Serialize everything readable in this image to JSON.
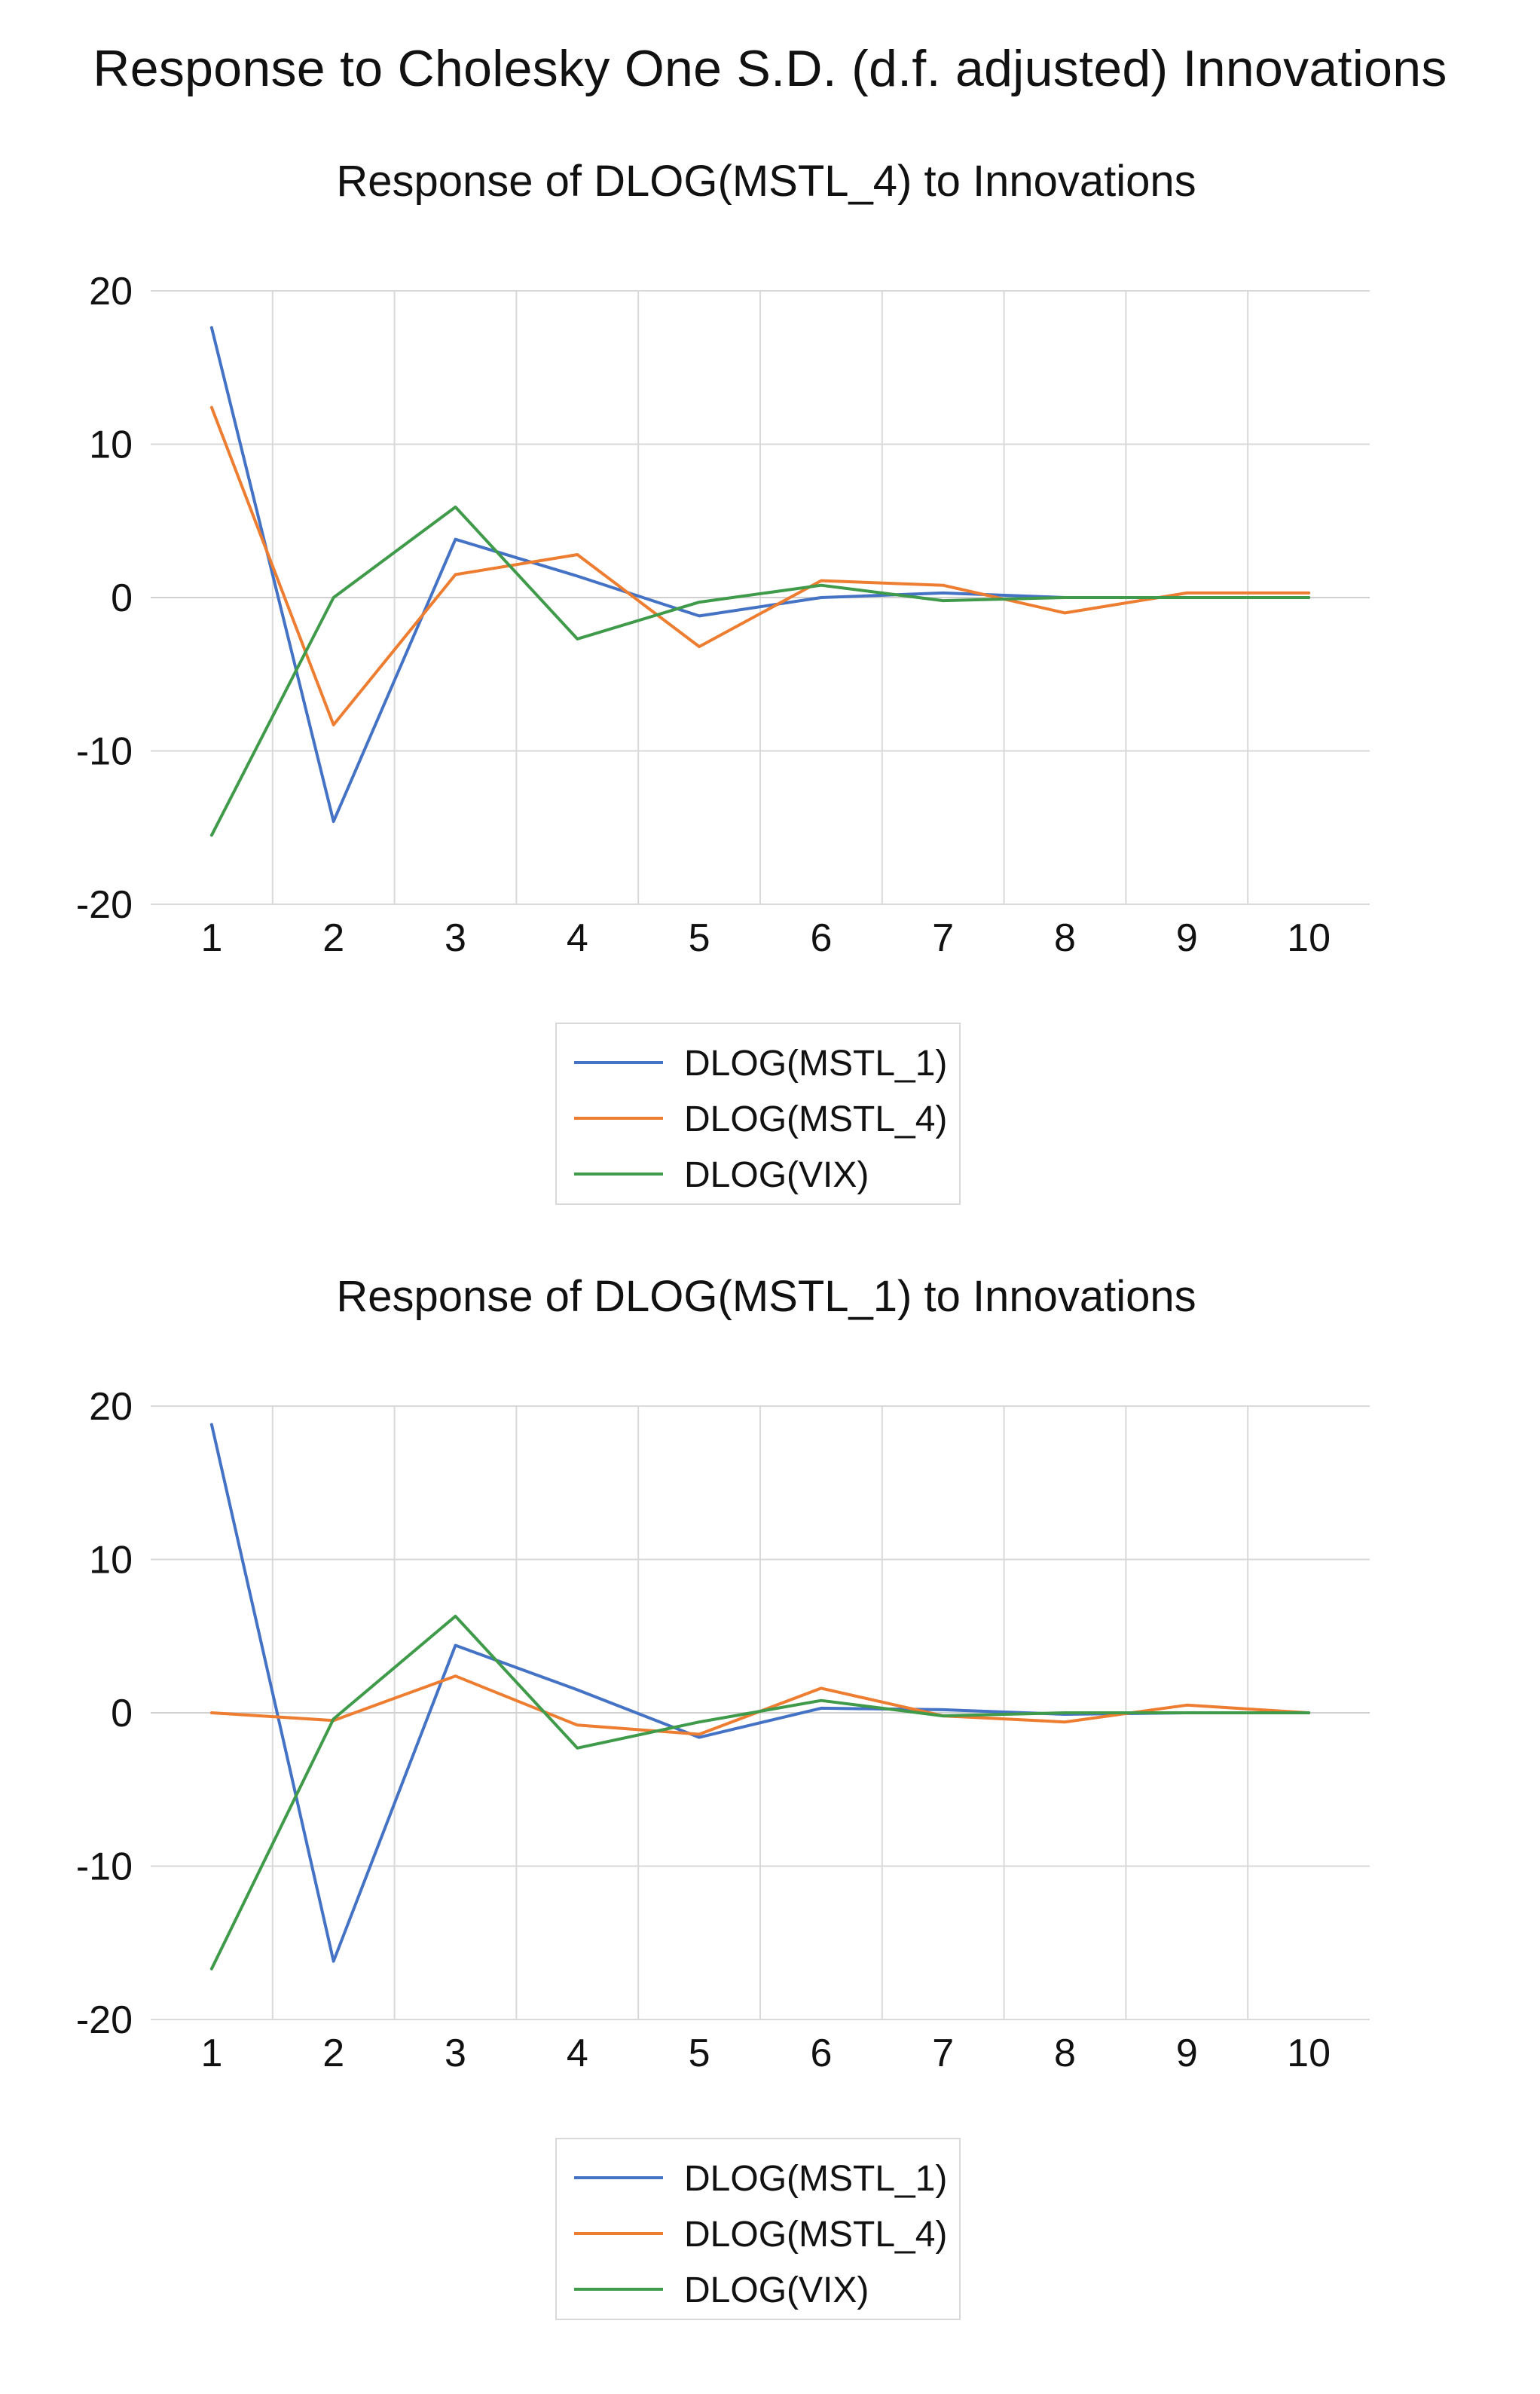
{
  "main_title": "Response to Cholesky One S.D. (d.f. adjusted) Innovations",
  "colors": {
    "blue": "#4472c4",
    "orange": "#ed7d31",
    "green": "#3f9a4a"
  },
  "chart_data": [
    {
      "type": "line",
      "title": "Response of DLOG(MSTL_4) to Innovations",
      "x": [
        1,
        2,
        3,
        4,
        5,
        6,
        7,
        8,
        9,
        10
      ],
      "categories": [
        "1",
        "2",
        "3",
        "4",
        "5",
        "6",
        "7",
        "8",
        "9",
        "10"
      ],
      "ylim": [
        -20,
        20
      ],
      "yticks": [
        "20",
        "10",
        "0",
        "-10",
        "-20"
      ],
      "ytick_values": [
        20,
        10,
        0,
        -10,
        -20
      ],
      "xlabel": "",
      "ylabel": "",
      "grid": "vertical",
      "legend_position": "bottom",
      "series": [
        {
          "name": "DLOG(MSTL_1)",
          "color": "#4472c4",
          "values": [
            17.6,
            -14.6,
            3.8,
            1.4,
            -1.2,
            0.0,
            0.3,
            0.0,
            0.0,
            0.0
          ]
        },
        {
          "name": "DLOG(MSTL_4)",
          "color": "#ed7d31",
          "values": [
            12.4,
            -8.3,
            1.5,
            2.8,
            -3.2,
            1.1,
            0.8,
            -1.0,
            0.3,
            0.3
          ]
        },
        {
          "name": "DLOG(VIX)",
          "color": "#3f9a4a",
          "values": [
            -15.5,
            0.0,
            5.9,
            -2.7,
            -0.3,
            0.8,
            -0.2,
            0.0,
            0.0,
            0.0
          ]
        }
      ]
    },
    {
      "type": "line",
      "title": "Response of DLOG(MSTL_1) to Innovations",
      "x": [
        1,
        2,
        3,
        4,
        5,
        6,
        7,
        8,
        9,
        10
      ],
      "categories": [
        "1",
        "2",
        "3",
        "4",
        "5",
        "6",
        "7",
        "8",
        "9",
        "10"
      ],
      "ylim": [
        -20,
        20
      ],
      "yticks": [
        "20",
        "10",
        "0",
        "-10",
        "-20"
      ],
      "ytick_values": [
        20,
        10,
        0,
        -10,
        -20
      ],
      "xlabel": "",
      "ylabel": "",
      "grid": "vertical",
      "legend_position": "bottom",
      "series": [
        {
          "name": "DLOG(MSTL_1)",
          "color": "#4472c4",
          "values": [
            18.8,
            -16.2,
            4.4,
            1.5,
            -1.6,
            0.3,
            0.2,
            -0.1,
            0.0,
            0.0
          ]
        },
        {
          "name": "DLOG(MSTL_4)",
          "color": "#ed7d31",
          "values": [
            0.0,
            -0.5,
            2.4,
            -0.8,
            -1.4,
            1.6,
            -0.2,
            -0.6,
            0.5,
            0.0
          ]
        },
        {
          "name": "DLOG(VIX)",
          "color": "#3f9a4a",
          "values": [
            -16.7,
            -0.4,
            6.3,
            -2.3,
            -0.6,
            0.8,
            -0.2,
            0.0,
            0.0,
            0.0
          ]
        }
      ]
    }
  ]
}
